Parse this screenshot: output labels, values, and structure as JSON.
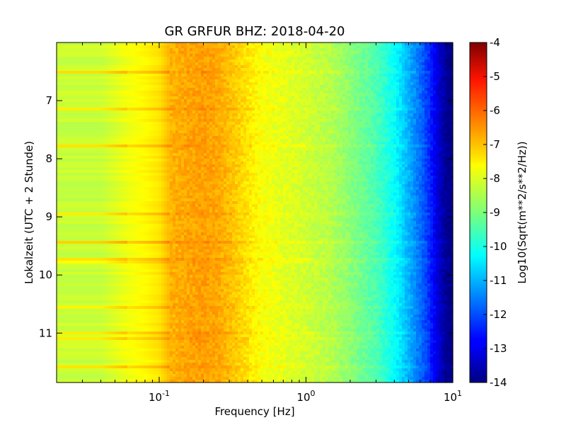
{
  "chart_data": {
    "type": "heatmap",
    "title": "GR GRFUR BHZ: 2018-04-20",
    "xlabel": "Frequency [Hz]",
    "ylabel": "Lokalzeit (UTC + 2 Stunde)",
    "x_scale": "log",
    "xlim": [
      0.02,
      10
    ],
    "ylim": [
      11.85,
      6.0
    ],
    "y_inverted": true,
    "x_ticks": [
      {
        "value": 0.1,
        "base": "10",
        "exp": "-1"
      },
      {
        "value": 1,
        "base": "10",
        "exp": "0"
      },
      {
        "value": 10,
        "base": "10",
        "exp": "1"
      }
    ],
    "y_ticks": [
      {
        "value": 7,
        "label": "7"
      },
      {
        "value": 8,
        "label": "8"
      },
      {
        "value": 9,
        "label": "9"
      },
      {
        "value": 10,
        "label": "10"
      },
      {
        "value": 11,
        "label": "11"
      }
    ],
    "colorbar": {
      "label": "Log10(Sqrt(m**2/s**2/Hz))",
      "range": [
        -14,
        -4
      ],
      "colormap": "jet",
      "ticks": [
        "-4",
        "-5",
        "-6",
        "-7",
        "-8",
        "-9",
        "-10",
        "-11",
        "-12",
        "-13",
        "-14"
      ]
    },
    "spectrum_profile": {
      "frequency_hz": [
        0.02,
        0.04,
        0.06,
        0.08,
        0.1,
        0.12,
        0.15,
        0.2,
        0.25,
        0.3,
        0.4,
        0.5,
        0.7,
        1.0,
        1.5,
        2.0,
        3.0,
        4.0,
        5.0,
        6.0,
        7.0,
        8.0,
        9.0,
        10.0
      ],
      "log10_amplitude": [
        -8.3,
        -8.3,
        -7.9,
        -7.7,
        -7.5,
        -7.0,
        -6.9,
        -6.8,
        -6.9,
        -7.1,
        -7.5,
        -7.8,
        -8.0,
        -8.2,
        -8.5,
        -8.9,
        -9.5,
        -10.2,
        -11.0,
        -11.7,
        -12.4,
        -13.2,
        -13.8,
        -14.0
      ]
    },
    "grid": false,
    "legend": "none"
  }
}
